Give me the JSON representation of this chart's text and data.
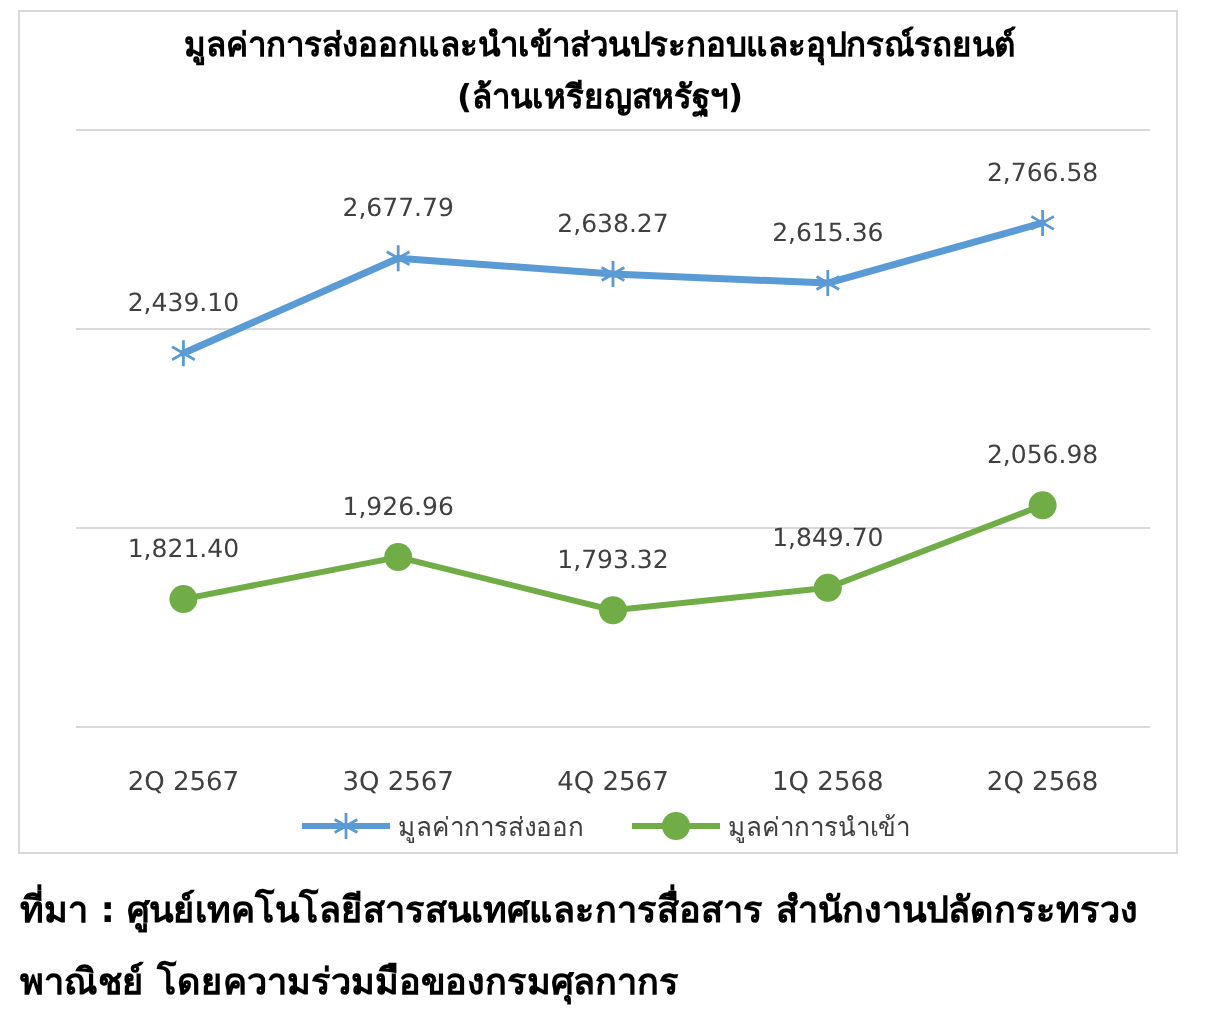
{
  "chart_data": {
    "type": "line",
    "title": "มูลค่าการส่งออกและนำเข้าส่วนประกอบและอุปกรณ์รถยนต์",
    "subtitle": "(ล้านเหรียญสหรัฐฯ)",
    "categories": [
      "2Q 2567",
      "3Q 2567",
      "4Q 2567",
      "1Q 2568",
      "2Q 2568"
    ],
    "series": [
      {
        "name": "มูลค่าการส่งออก",
        "color": "#5b9bd5",
        "marker": "cross",
        "values": [
          2439.1,
          2677.79,
          2638.27,
          2615.36,
          2766.58
        ],
        "value_labels": [
          "2,439.10",
          "2,677.79",
          "2,638.27",
          "2,615.36",
          "2,766.58"
        ]
      },
      {
        "name": "มูลค่าการนำเข้า",
        "color": "#70ad47",
        "marker": "circle",
        "values": [
          1821.4,
          1926.96,
          1793.32,
          1849.7,
          2056.98
        ],
        "value_labels": [
          "1,821.40",
          "1,926.96",
          "1,793.32",
          "1,849.70",
          "2,056.98"
        ]
      }
    ],
    "ylim": [
      1500,
      3000
    ],
    "yticks": [
      {
        "value": 1500,
        "label": null
      },
      {
        "value": 2000,
        "label": null
      },
      {
        "value": 2500,
        "label": null
      },
      {
        "value": 3000,
        "label": null
      }
    ],
    "grid": "y",
    "tick_labels": "x",
    "legend": "bottom",
    "line_style": "solid",
    "annotations": [
      "ที่มา : ศูนย์เทคโนโลยีสารสนเทศและการสื่อสาร สำนักงานปลัดกระทรวงพาณิชย์ โดยความร่วมมือของกรมศุลกากร"
    ]
  }
}
